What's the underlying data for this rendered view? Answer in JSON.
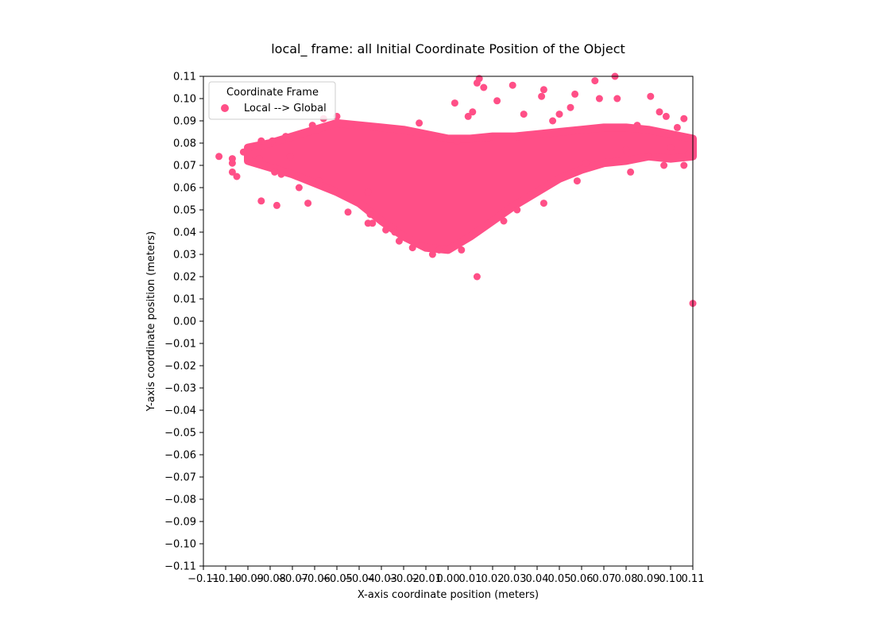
{
  "chart_data": {
    "type": "scatter",
    "title": "local_ frame: all Initial Coordinate Position of the Object",
    "xlabel": "X-axis coordinate position (meters)",
    "ylabel": "Y-axis coordinate position (meters)",
    "xlim": [
      -0.11,
      0.11
    ],
    "ylim": [
      -0.11,
      0.11
    ],
    "x_ticks": [
      "−0.11",
      "−0.10",
      "−0.09",
      "−0.08",
      "−0.07",
      "−0.06",
      "−0.05",
      "−0.04",
      "−0.03",
      "−0.02",
      "−0.01",
      "0.00",
      "0.01",
      "0.02",
      "0.03",
      "0.04",
      "0.05",
      "0.06",
      "0.07",
      "0.08",
      "0.09",
      "0.10",
      "0.11"
    ],
    "y_ticks": [
      "−0.11",
      "−0.10",
      "−0.09",
      "−0.08",
      "−0.07",
      "−0.06",
      "−0.05",
      "−0.04",
      "−0.03",
      "−0.02",
      "−0.01",
      "0.00",
      "0.01",
      "0.02",
      "0.03",
      "0.04",
      "0.05",
      "0.06",
      "0.07",
      "0.08",
      "0.09",
      "0.10",
      "0.11"
    ],
    "legend": {
      "title": "Coordinate Frame",
      "placement": "upper-left",
      "entries": [
        "Local --> Global"
      ]
    },
    "series": [
      {
        "name": "Local --> Global",
        "color": "#ff4f87",
        "points": [
          [
            -0.103,
            0.074
          ],
          [
            -0.097,
            0.073
          ],
          [
            -0.097,
            0.071
          ],
          [
            -0.097,
            0.067
          ],
          [
            -0.095,
            0.065
          ],
          [
            -0.092,
            0.076
          ],
          [
            -0.089,
            0.078
          ],
          [
            -0.085,
            0.073
          ],
          [
            -0.084,
            0.081
          ],
          [
            -0.084,
            0.054
          ],
          [
            -0.079,
            0.081
          ],
          [
            -0.078,
            0.067
          ],
          [
            -0.077,
            0.052
          ],
          [
            -0.075,
            0.066
          ],
          [
            -0.073,
            0.083
          ],
          [
            -0.071,
            0.074
          ],
          [
            -0.068,
            0.065
          ],
          [
            -0.067,
            0.06
          ],
          [
            -0.063,
            0.053
          ],
          [
            -0.061,
            0.088
          ],
          [
            -0.058,
            0.063
          ],
          [
            -0.056,
            0.091
          ],
          [
            -0.055,
            0.06
          ],
          [
            -0.05,
            0.092
          ],
          [
            -0.045,
            0.049
          ],
          [
            -0.041,
            0.088
          ],
          [
            -0.036,
            0.044
          ],
          [
            -0.036,
            0.058
          ],
          [
            -0.035,
            0.048
          ],
          [
            -0.034,
            0.044
          ],
          [
            -0.028,
            0.041
          ],
          [
            -0.024,
            0.04
          ],
          [
            -0.022,
            0.036
          ],
          [
            -0.016,
            0.033
          ],
          [
            -0.013,
            0.089
          ],
          [
            -0.012,
            0.034
          ],
          [
            -0.007,
            0.03
          ],
          [
            -0.004,
            0.032
          ],
          [
            0.003,
            0.098
          ],
          [
            0.004,
            0.081
          ],
          [
            0.006,
            0.032
          ],
          [
            0.009,
            0.092
          ],
          [
            0.011,
            0.094
          ],
          [
            0.013,
            0.107
          ],
          [
            0.013,
            0.02
          ],
          [
            0.014,
            0.109
          ],
          [
            0.016,
            0.105
          ],
          [
            0.022,
            0.099
          ],
          [
            0.025,
            0.045
          ],
          [
            0.029,
            0.106
          ],
          [
            0.031,
            0.05
          ],
          [
            0.034,
            0.093
          ],
          [
            0.042,
            0.101
          ],
          [
            0.043,
            0.104
          ],
          [
            0.043,
            0.053
          ],
          [
            0.047,
            0.09
          ],
          [
            0.05,
            0.093
          ],
          [
            0.055,
            0.096
          ],
          [
            0.057,
            0.102
          ],
          [
            0.058,
            0.063
          ],
          [
            0.062,
            0.071
          ],
          [
            0.066,
            0.108
          ],
          [
            0.068,
            0.1
          ],
          [
            0.075,
            0.11
          ],
          [
            0.076,
            0.1
          ],
          [
            0.082,
            0.067
          ],
          [
            0.085,
            0.088
          ],
          [
            0.091,
            0.101
          ],
          [
            0.095,
            0.094
          ],
          [
            0.097,
            0.07
          ],
          [
            0.098,
            0.092
          ],
          [
            0.103,
            0.087
          ],
          [
            0.106,
            0.091
          ],
          [
            0.106,
            0.07
          ],
          [
            0.11,
            0.008
          ],
          [
            0.11,
            0.082
          ],
          [
            0.108,
            0.075
          ],
          [
            0.1,
            0.078
          ],
          [
            0.09,
            0.074
          ],
          [
            0.08,
            0.077
          ]
        ]
      }
    ],
    "grid": false
  }
}
